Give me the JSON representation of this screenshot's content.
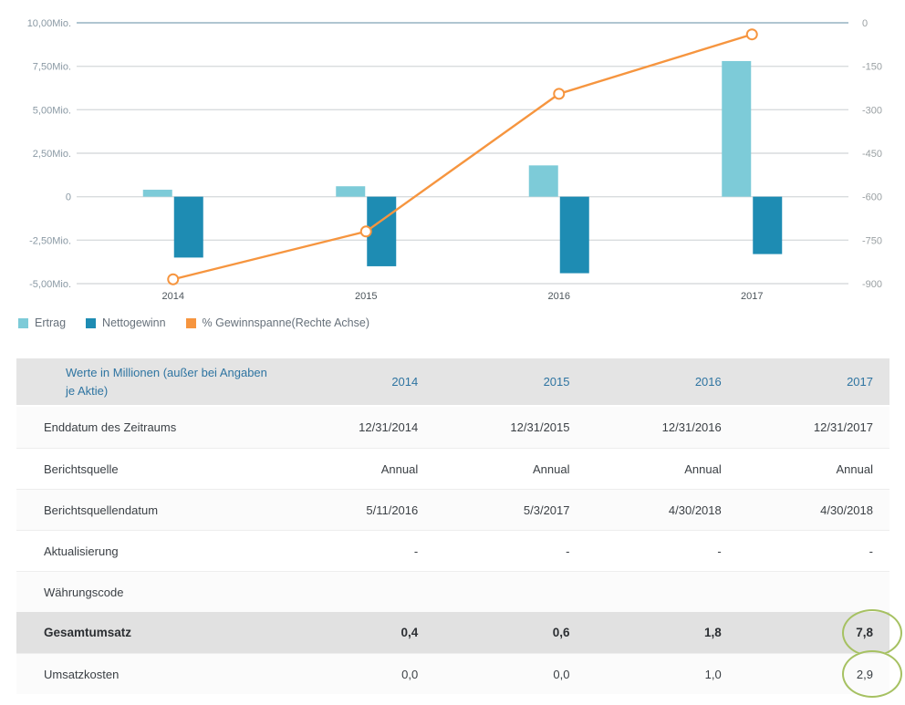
{
  "chart_data": {
    "type": "combo",
    "categories": [
      "2014",
      "2015",
      "2016",
      "2017"
    ],
    "series": [
      {
        "name": "Ertrag",
        "type": "bar",
        "axis": "left",
        "color": "#7dcbd8",
        "values": [
          0.4,
          0.6,
          1.8,
          7.8
        ]
      },
      {
        "name": "Nettogewinn",
        "type": "bar",
        "axis": "left",
        "color": "#1e8cb3",
        "values": [
          -3.5,
          -4.0,
          -4.4,
          -3.3
        ]
      },
      {
        "name": "% Gewinnspanne(Rechte Achse)",
        "type": "line",
        "axis": "right",
        "color": "#f6953f",
        "values": [
          -885,
          -720,
          -245,
          -40
        ]
      }
    ],
    "left_axis": {
      "labels": [
        "10,00Mio.",
        "7,50Mio.",
        "5,00Mio.",
        "2,50Mio.",
        "0",
        "-2,50Mio.",
        "-5,00Mio."
      ],
      "ylim_mio": [
        -5,
        10
      ]
    },
    "right_axis": {
      "labels": [
        "0",
        "-150",
        "-300",
        "-450",
        "-600",
        "-750",
        "-900"
      ],
      "ylim": [
        -900,
        0
      ]
    },
    "grid": true,
    "legend_position": "bottom-left"
  },
  "table": {
    "header": {
      "label": "Werte in Millionen (außer bei Angaben je Aktie)",
      "years": [
        "2014",
        "2015",
        "2016",
        "2017"
      ]
    },
    "rows": [
      {
        "label": "Enddatum des Zeitraums",
        "values": [
          "12/31/2014",
          "12/31/2015",
          "12/31/2016",
          "12/31/2017"
        ]
      },
      {
        "label": "Berichtsquelle",
        "values": [
          "Annual",
          "Annual",
          "Annual",
          "Annual"
        ]
      },
      {
        "label": "Berichtsquellendatum",
        "values": [
          "5/11/2016",
          "5/3/2017",
          "4/30/2018",
          "4/30/2018"
        ]
      },
      {
        "label": "Aktualisierung",
        "values": [
          "-",
          "-",
          "-",
          "-"
        ]
      },
      {
        "label": "Währungscode",
        "values": [
          "",
          "",
          "",
          ""
        ]
      },
      {
        "label": "Gesamtumsatz",
        "values": [
          "0,4",
          "0,6",
          "1,8",
          "7,8"
        ],
        "bold": true,
        "highlight": true,
        "circled_col": 3
      },
      {
        "label": "Umsatzkosten",
        "values": [
          "0,0",
          "0,0",
          "1,0",
          "2,9"
        ],
        "circled_col": 3
      }
    ]
  },
  "colors": {
    "grid_line": "#d9dcde",
    "grid_line_top": "#b0c5d1",
    "left_axis_text": "#8a99a4",
    "right_axis_text": "#9aa0a3",
    "x_axis_text": "#4d565c",
    "legend_text": "#66707a",
    "table_header_bg": "#e4e4e4",
    "table_header_text": "#2e74a1",
    "highlight_row_bg": "#e1e1e1",
    "highlight_circle": "#a6c162",
    "bar_light": "#7dcbd8",
    "bar_dark": "#1e8cb3",
    "line_orange": "#f6953f"
  }
}
